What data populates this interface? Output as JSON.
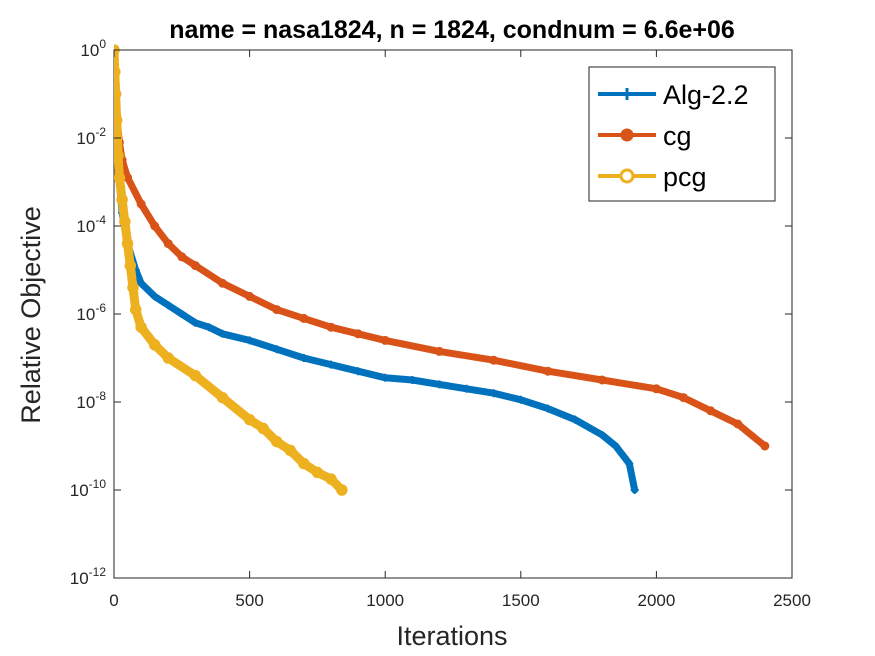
{
  "chart_data": {
    "type": "line",
    "title": "name = nasa1824, n = 1824, condnum = 6.6e+06",
    "xlabel": "Iterations",
    "ylabel": "Relative Objective",
    "xscale": "linear",
    "yscale": "log",
    "xlim": [
      0,
      2500
    ],
    "ylim_exponent": [
      -12,
      0
    ],
    "x_ticks": [
      0,
      500,
      1000,
      1500,
      2000,
      2500
    ],
    "x_tick_labels": [
      "0",
      "500",
      "1000",
      "1500",
      "2000",
      "2500"
    ],
    "y_tick_exponents": [
      0,
      -2,
      -4,
      -6,
      -8,
      -10,
      -12
    ],
    "y_tick_base": "10",
    "legend_position": "top-right",
    "grid": false,
    "series": [
      {
        "name": "Alg-2.2",
        "color": "#0072BD",
        "marker": "plus",
        "points": [
          [
            0,
            0
          ],
          [
            5,
            -1.2
          ],
          [
            10,
            -2.2
          ],
          [
            20,
            -3.0
          ],
          [
            30,
            -3.7
          ],
          [
            50,
            -4.4
          ],
          [
            80,
            -5.0
          ],
          [
            100,
            -5.3
          ],
          [
            150,
            -5.6
          ],
          [
            200,
            -5.8
          ],
          [
            250,
            -6.0
          ],
          [
            300,
            -6.2
          ],
          [
            350,
            -6.3
          ],
          [
            400,
            -6.45
          ],
          [
            500,
            -6.6
          ],
          [
            600,
            -6.8
          ],
          [
            700,
            -7.0
          ],
          [
            800,
            -7.15
          ],
          [
            900,
            -7.3
          ],
          [
            1000,
            -7.45
          ],
          [
            1100,
            -7.5
          ],
          [
            1200,
            -7.6
          ],
          [
            1300,
            -7.7
          ],
          [
            1400,
            -7.8
          ],
          [
            1500,
            -7.95
          ],
          [
            1600,
            -8.15
          ],
          [
            1700,
            -8.4
          ],
          [
            1800,
            -8.75
          ],
          [
            1850,
            -9.0
          ],
          [
            1900,
            -9.4
          ],
          [
            1920,
            -10.0
          ]
        ]
      },
      {
        "name": "cg",
        "color": "#D95319",
        "marker": "circle",
        "points": [
          [
            0,
            0
          ],
          [
            5,
            -0.8
          ],
          [
            10,
            -1.5
          ],
          [
            20,
            -2.1
          ],
          [
            30,
            -2.5
          ],
          [
            50,
            -2.9
          ],
          [
            100,
            -3.5
          ],
          [
            150,
            -4.0
          ],
          [
            200,
            -4.4
          ],
          [
            250,
            -4.7
          ],
          [
            300,
            -4.9
          ],
          [
            400,
            -5.3
          ],
          [
            500,
            -5.6
          ],
          [
            600,
            -5.9
          ],
          [
            700,
            -6.1
          ],
          [
            800,
            -6.3
          ],
          [
            900,
            -6.45
          ],
          [
            1000,
            -6.6
          ],
          [
            1200,
            -6.85
          ],
          [
            1400,
            -7.05
          ],
          [
            1600,
            -7.3
          ],
          [
            1800,
            -7.5
          ],
          [
            2000,
            -7.7
          ],
          [
            2100,
            -7.9
          ],
          [
            2200,
            -8.2
          ],
          [
            2300,
            -8.5
          ],
          [
            2400,
            -9.0
          ]
        ]
      },
      {
        "name": "pcg",
        "color": "#EDB120",
        "marker": "circle-open",
        "points": [
          [
            0,
            0
          ],
          [
            3,
            -0.5
          ],
          [
            6,
            -1.0
          ],
          [
            10,
            -1.6
          ],
          [
            15,
            -2.4
          ],
          [
            20,
            -2.9
          ],
          [
            30,
            -3.4
          ],
          [
            40,
            -3.9
          ],
          [
            50,
            -4.4
          ],
          [
            60,
            -4.9
          ],
          [
            70,
            -5.4
          ],
          [
            80,
            -5.9
          ],
          [
            100,
            -6.3
          ],
          [
            150,
            -6.7
          ],
          [
            200,
            -7.0
          ],
          [
            300,
            -7.4
          ],
          [
            400,
            -7.9
          ],
          [
            500,
            -8.4
          ],
          [
            550,
            -8.6
          ],
          [
            600,
            -8.9
          ],
          [
            650,
            -9.1
          ],
          [
            700,
            -9.4
          ],
          [
            750,
            -9.6
          ],
          [
            800,
            -9.75
          ],
          [
            840,
            -10.0
          ]
        ]
      }
    ]
  }
}
